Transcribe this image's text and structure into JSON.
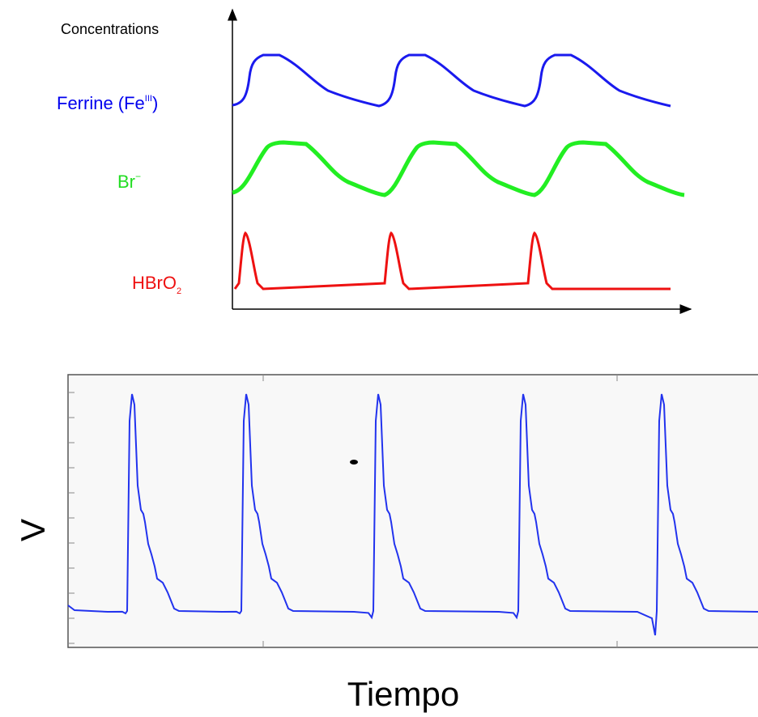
{
  "top": {
    "y_label": "Concentrations",
    "species": [
      {
        "name": "Ferrine (Fe",
        "sup": "III",
        "suffix": ")"
      },
      {
        "name": "Br",
        "sup": "−"
      },
      {
        "name": "HBrO",
        "sub": "2"
      }
    ]
  },
  "bottom": {
    "y_label": "V",
    "x_label": "Tiempo"
  }
}
